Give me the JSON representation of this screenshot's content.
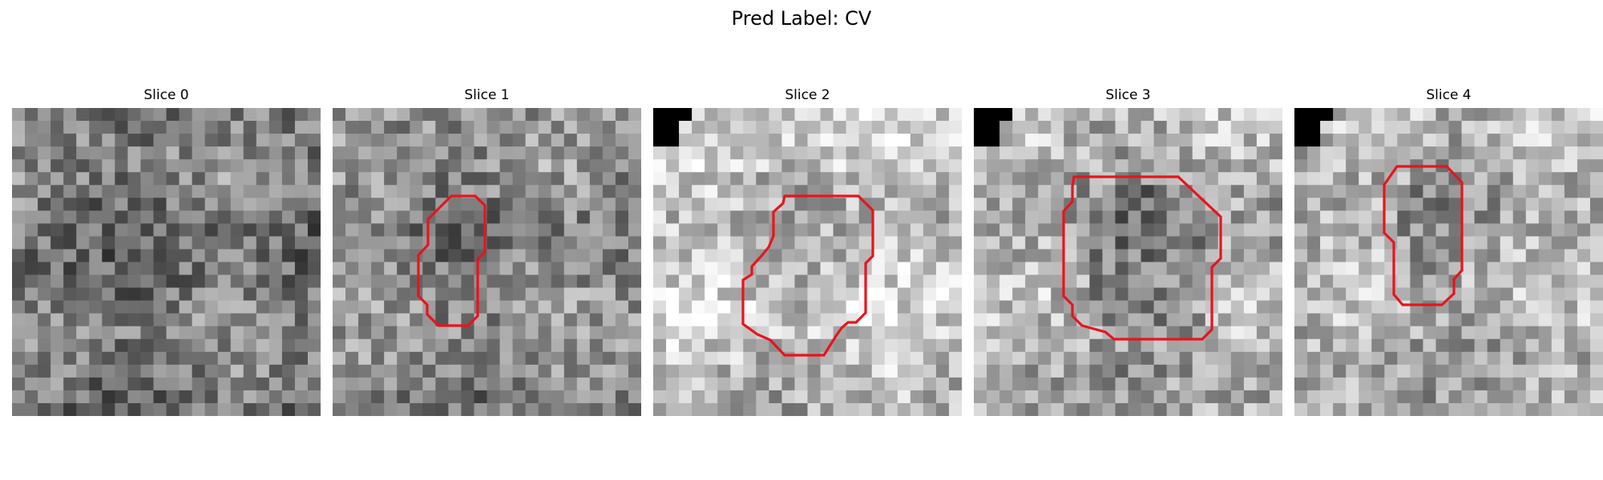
{
  "figure": {
    "title": "Pred Label: CV"
  },
  "slices": [
    {
      "title": "Slice 0",
      "base_tone": 120,
      "has_contour": false
    },
    {
      "title": "Slice 1",
      "base_tone": 135,
      "has_contour": true
    },
    {
      "title": "Slice 2",
      "base_tone": 190,
      "has_contour": true
    },
    {
      "title": "Slice 3",
      "base_tone": 170,
      "has_contour": true
    },
    {
      "title": "Slice 4",
      "base_tone": 175,
      "has_contour": true
    }
  ],
  "colors": {
    "contour": "#e8141c",
    "corner_block": "#000000",
    "background": "#ffffff"
  },
  "image_grid": 24
}
